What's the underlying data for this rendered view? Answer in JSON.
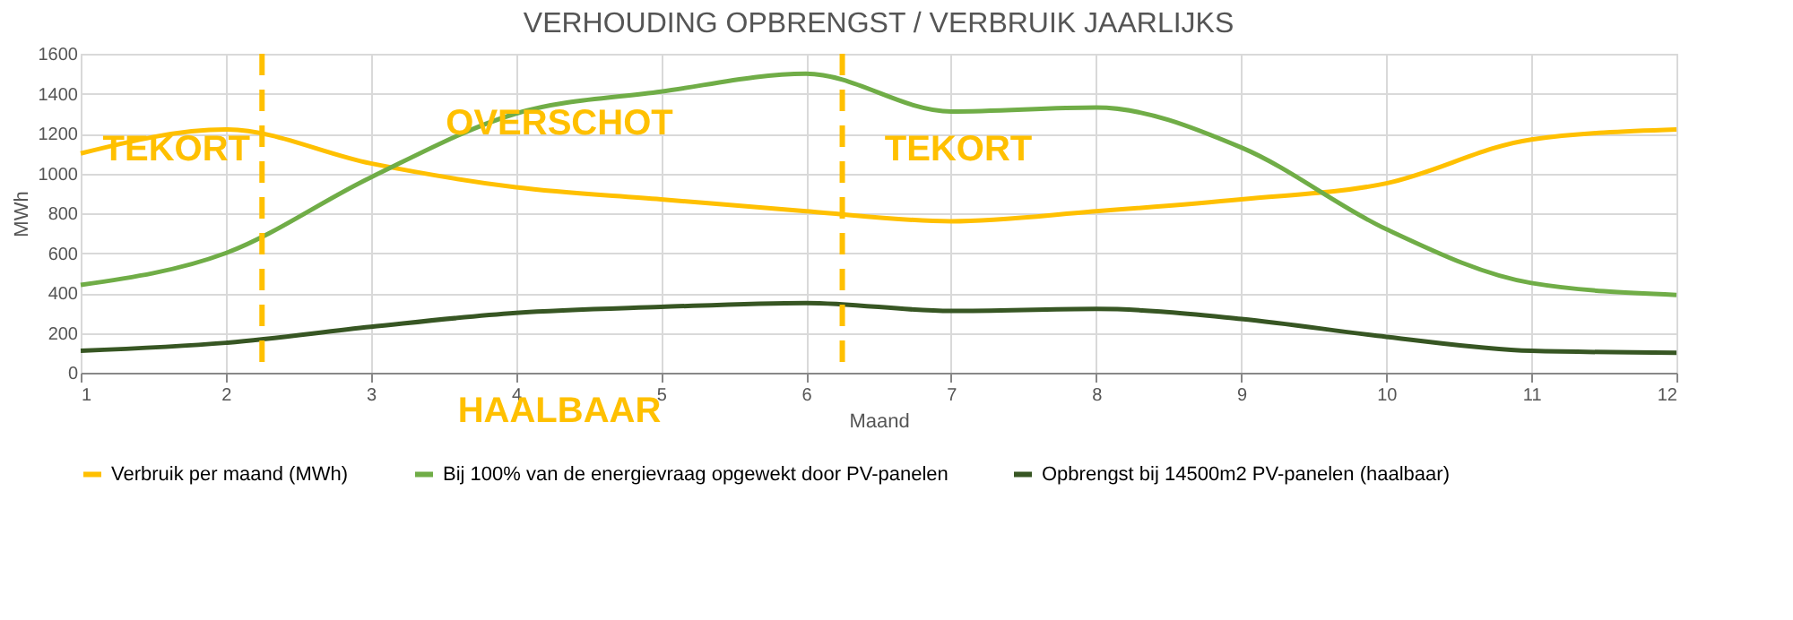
{
  "chart_data": {
    "type": "line",
    "title": "VERHOUDING OPBRENGST / VERBRUIK JAARLIJKS",
    "xlabel": "Maand",
    "ylabel": "MWh",
    "x": [
      1,
      2,
      3,
      4,
      5,
      6,
      7,
      8,
      9,
      10,
      11,
      12
    ],
    "series": [
      {
        "name": "Verbruik per maand (MWh)",
        "color": "#ffc000",
        "values": [
          1100,
          1220,
          1050,
          930,
          870,
          810,
          760,
          810,
          870,
          950,
          1170,
          1220
        ]
      },
      {
        "name": "Bij 100% van de energievraag opgewekt door PV-panelen",
        "color": "#70ad47",
        "values": [
          440,
          600,
          980,
          1300,
          1410,
          1500,
          1310,
          1330,
          1130,
          720,
          450,
          390
        ]
      },
      {
        "name": "Opbrengst bij 14500m2 PV-panelen (haalbaar)",
        "color": "#375623",
        "values": [
          110,
          150,
          230,
          300,
          330,
          350,
          310,
          320,
          270,
          180,
          110,
          100
        ]
      }
    ],
    "xlim": [
      1,
      12
    ],
    "xticks": [
      1,
      2,
      3,
      4,
      5,
      6,
      7,
      8,
      9,
      10,
      11,
      12
    ],
    "ylim": [
      0,
      1600
    ],
    "yticks": [
      0,
      200,
      400,
      600,
      800,
      1000,
      1200,
      1400,
      1600
    ],
    "ref_lines": [
      {
        "axis": "x",
        "value": 2.25,
        "color": "#ffc000",
        "line_style": "dashed"
      },
      {
        "axis": "x",
        "value": 6.25,
        "color": "#ffc000",
        "line_style": "dashed"
      }
    ],
    "annotations": [
      "TEKORT",
      "OVERSCHOT",
      "TEKORT",
      "HAALBAAR"
    ],
    "grid": true,
    "legend": "bottom",
    "line_style": "solid",
    "marker": "none"
  }
}
